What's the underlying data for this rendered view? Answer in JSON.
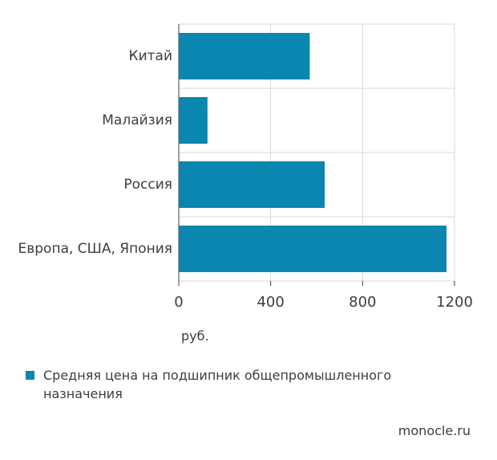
{
  "chart_data": {
    "type": "bar",
    "orientation": "horizontal",
    "categories": [
      "Китай",
      "Малайзия",
      "Россия",
      "Европа, США, Япония"
    ],
    "series": [
      {
        "name": "Средняя цена на подшипник общепромышленного назначения",
        "values": [
          570,
          125,
          635,
          1165
        ]
      }
    ],
    "xlim": [
      0,
      1200
    ],
    "xticks": [
      0,
      400,
      800,
      1200
    ],
    "xlabel": "руб.",
    "grid": true,
    "legend_position": "bottom-left",
    "color": "#0a86b0"
  },
  "legend": {
    "label": "Средняя цена на подшипник общепромышленного назначения"
  },
  "source": "monocle.ru"
}
